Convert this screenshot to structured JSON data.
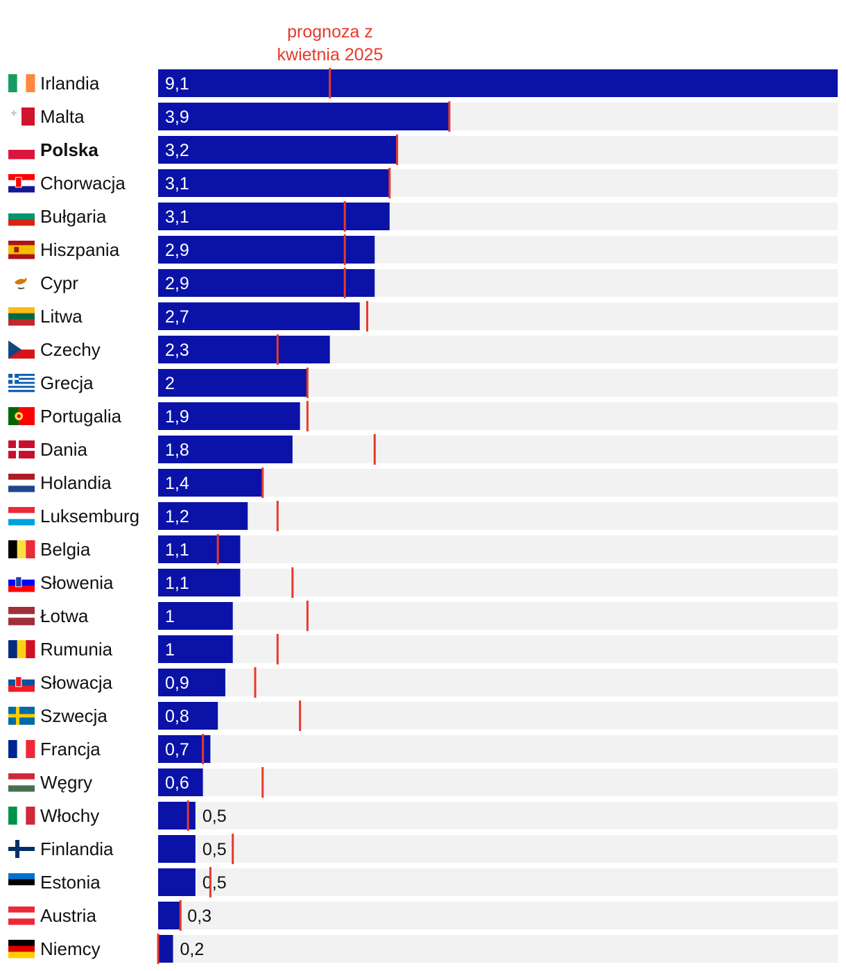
{
  "chart_data": {
    "type": "bar",
    "orientation": "horizontal",
    "annotation": "prognoza z kwietnia 2025",
    "xlim": [
      0,
      9.1
    ],
    "colors": {
      "bar": "#0a12a8",
      "track": "#f2f2f2",
      "marker": "#e8392b"
    },
    "highlight": "Polska",
    "rows": [
      {
        "country": "Irlandia",
        "flag": "flag-ireland",
        "value": 9.1,
        "label": "9,1",
        "forecast": 2.3
      },
      {
        "country": "Malta",
        "flag": "flag-malta",
        "value": 3.9,
        "label": "3,9",
        "forecast": 3.9
      },
      {
        "country": "Polska",
        "flag": "flag-poland",
        "value": 3.2,
        "label": "3,2",
        "forecast": 3.2
      },
      {
        "country": "Chorwacja",
        "flag": "flag-croatia",
        "value": 3.1,
        "label": "3,1",
        "forecast": 3.1
      },
      {
        "country": "Bułgaria",
        "flag": "flag-bulgaria",
        "value": 3.1,
        "label": "3,1",
        "forecast": 2.5
      },
      {
        "country": "Hiszpania",
        "flag": "flag-spain",
        "value": 2.9,
        "label": "2,9",
        "forecast": 2.5
      },
      {
        "country": "Cypr",
        "flag": "flag-cyprus",
        "value": 2.9,
        "label": "2,9",
        "forecast": 2.5
      },
      {
        "country": "Litwa",
        "flag": "flag-lithuania",
        "value": 2.7,
        "label": "2,7",
        "forecast": 2.8
      },
      {
        "country": "Czechy",
        "flag": "flag-czechia",
        "value": 2.3,
        "label": "2,3",
        "forecast": 1.6
      },
      {
        "country": "Grecja",
        "flag": "flag-greece",
        "value": 2.0,
        "label": "2",
        "forecast": 2.0
      },
      {
        "country": "Portugalia",
        "flag": "flag-portugal",
        "value": 1.9,
        "label": "1,9",
        "forecast": 2.0
      },
      {
        "country": "Dania",
        "flag": "flag-denmark",
        "value": 1.8,
        "label": "1,8",
        "forecast": 2.9
      },
      {
        "country": "Holandia",
        "flag": "flag-netherlands",
        "value": 1.4,
        "label": "1,4",
        "forecast": 1.4
      },
      {
        "country": "Luksemburg",
        "flag": "flag-luxembourg",
        "value": 1.2,
        "label": "1,2",
        "forecast": 1.6
      },
      {
        "country": "Belgia",
        "flag": "flag-belgium",
        "value": 1.1,
        "label": "1,1",
        "forecast": 0.8
      },
      {
        "country": "Słowenia",
        "flag": "flag-slovenia",
        "value": 1.1,
        "label": "1,1",
        "forecast": 1.8
      },
      {
        "country": "Łotwa",
        "flag": "flag-latvia",
        "value": 1.0,
        "label": "1",
        "forecast": 2.0
      },
      {
        "country": "Rumunia",
        "flag": "flag-romania",
        "value": 1.0,
        "label": "1",
        "forecast": 1.6
      },
      {
        "country": "Słowacja",
        "flag": "flag-slovakia",
        "value": 0.9,
        "label": "0,9",
        "forecast": 1.3
      },
      {
        "country": "Szwecja",
        "flag": "flag-sweden",
        "value": 0.8,
        "label": "0,8",
        "forecast": 1.9
      },
      {
        "country": "Francja",
        "flag": "flag-france",
        "value": 0.7,
        "label": "0,7",
        "forecast": 0.6
      },
      {
        "country": "Węgry",
        "flag": "flag-hungary",
        "value": 0.6,
        "label": "0,6",
        "forecast": 1.4
      },
      {
        "country": "Włochy",
        "flag": "flag-italy",
        "value": 0.5,
        "label": "0,5",
        "forecast": 0.4
      },
      {
        "country": "Finlandia",
        "flag": "flag-finland",
        "value": 0.5,
        "label": "0,5",
        "forecast": 1.0
      },
      {
        "country": "Estonia",
        "flag": "flag-estonia",
        "value": 0.5,
        "label": "0,5",
        "forecast": 0.7
      },
      {
        "country": "Austria",
        "flag": "flag-austria",
        "value": 0.3,
        "label": "0,3",
        "forecast": 0.3
      },
      {
        "country": "Niemcy",
        "flag": "flag-germany",
        "value": 0.2,
        "label": "0,2",
        "forecast": 0.0
      }
    ]
  }
}
